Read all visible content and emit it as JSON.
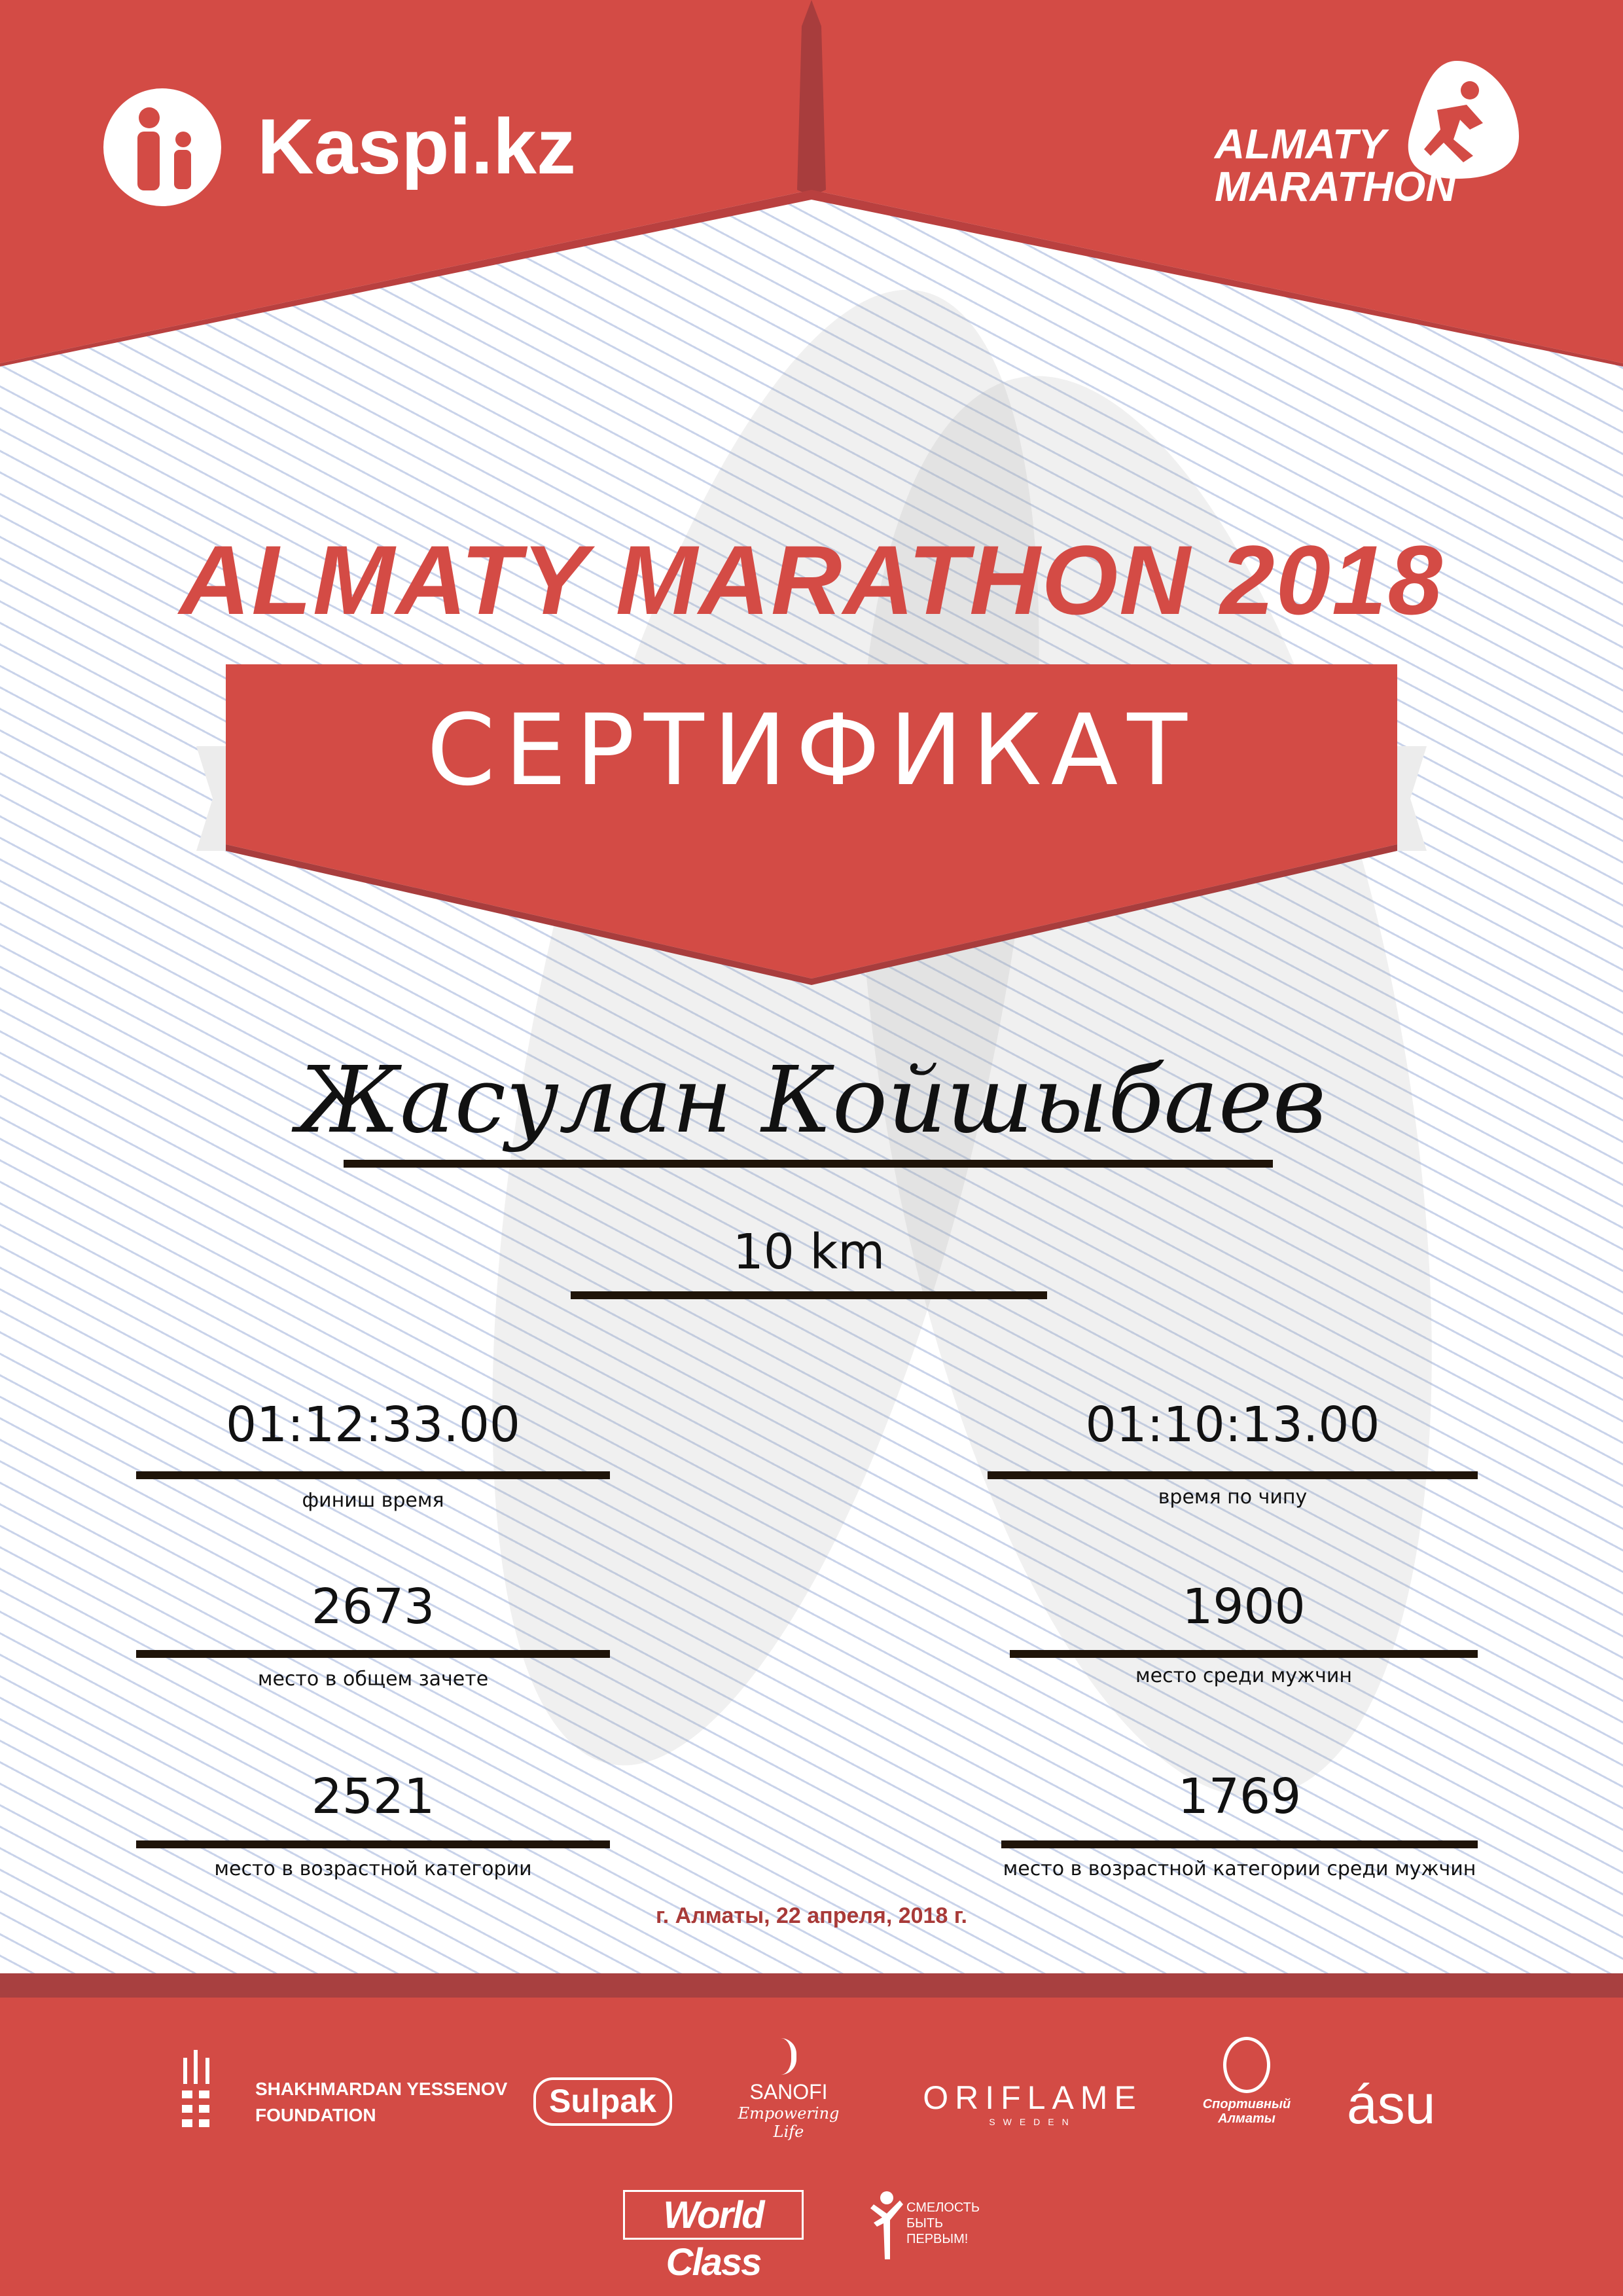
{
  "header": {
    "sponsor_logo": "Kaspi.kz",
    "event_logo_line1": "ALMATY",
    "event_logo_line2": "MARATHON"
  },
  "title": "ALMATY MARATHON 2018",
  "certificate_label": "СЕРТИФИКАТ",
  "participant_name": "Жасулан Койшыбаев",
  "distance": "10 km",
  "results": {
    "finish_time": {
      "value": "01:12:33.00",
      "label": "финиш время"
    },
    "chip_time": {
      "value": "01:10:13.00",
      "label": "время по чипу"
    },
    "overall_place": {
      "value": "2673",
      "label": "место в общем зачете"
    },
    "male_place": {
      "value": "1900",
      "label": "место среди мужчин"
    },
    "age_place": {
      "value": "2521",
      "label": "место в возрастной категории"
    },
    "age_male_place": {
      "value": "1769",
      "label": "место в возрастной категории среди мужчин"
    }
  },
  "date": "г. Алматы, 22 апреля, 2018 г.",
  "sponsors": {
    "yessenov_line1": "SHAKHMARDAN YESSENOV",
    "yessenov_line2": "FOUNDATION",
    "sulpak": "Sulpak",
    "sanofi": "SANOFI",
    "sanofi_tagline": "Empowering Life",
    "oriflame": "ORIFLAME",
    "oriflame_sub": "SWEDEN",
    "sport_almaty": "Спортивный Алматы",
    "asu": "ásu",
    "worldclass": "World Class",
    "smelost_line1": "СМЕЛОСТЬ",
    "smelost_line2": "БЫТЬ",
    "smelost_line3": "ПЕРВЫМ!"
  },
  "colors": {
    "brand_red": "#d34b45",
    "dark_red": "#a84040",
    "line": "#1f1409"
  }
}
